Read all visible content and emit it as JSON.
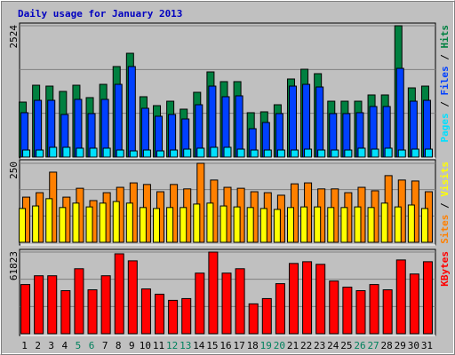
{
  "legend_separator": " / ",
  "chart_data": [
    {
      "type": "bar",
      "title": "Daily usage for January 2013",
      "ylim": [
        0,
        2524
      ],
      "yticks": [
        2524
      ],
      "series": [
        {
          "name": "Pages",
          "color": "#00e0ff",
          "values": [
            136,
            136,
            188,
            188,
            171,
            171,
            171,
            136,
            119,
            136,
            119,
            136,
            153,
            171,
            188,
            188,
            153,
            136,
            136,
            136,
            136,
            153,
            136,
            136,
            136,
            171,
            153,
            171,
            136,
            153,
            153
          ]
        },
        {
          "name": "Files",
          "color": "#0040ff",
          "values": [
            853,
            1091,
            1091,
            819,
            1109,
            836,
            1109,
            1398,
            1740,
            938,
            785,
            819,
            733,
            1006,
            1364,
            1160,
            1177,
            546,
            665,
            836,
            1364,
            1398,
            1347,
            836,
            836,
            853,
            972,
            972,
            1705,
            1074,
            1091
          ]
        },
        {
          "name": "Hits",
          "color": "#008040",
          "values": [
            1057,
            1381,
            1364,
            1262,
            1381,
            1143,
            1398,
            1740,
            1995,
            1160,
            989,
            1074,
            921,
            1245,
            1637,
            1450,
            1450,
            853,
            870,
            1006,
            1501,
            1688,
            1603,
            1074,
            1074,
            1074,
            1194,
            1194,
            2524,
            1330,
            1364
          ]
        }
      ]
    },
    {
      "type": "bar",
      "ylim": [
        0,
        250
      ],
      "yticks": [
        250
      ],
      "series": [
        {
          "name": "Sites",
          "color": "#ff8000",
          "values": [
            143,
            157,
            222,
            143,
            171,
            132,
            157,
            174,
            188,
            183,
            160,
            183,
            169,
            250,
            197,
            174,
            171,
            160,
            157,
            149,
            185,
            188,
            169,
            169,
            157,
            174,
            163,
            211,
            197,
            194,
            160
          ]
        },
        {
          "name": "Visits",
          "color": "#ffff00",
          "values": [
            107,
            115,
            138,
            110,
            124,
            112,
            124,
            129,
            124,
            110,
            107,
            110,
            110,
            121,
            124,
            115,
            112,
            110,
            107,
            104,
            110,
            112,
            112,
            110,
            110,
            112,
            110,
            124,
            112,
            118,
            107
          ]
        }
      ]
    },
    {
      "type": "bar",
      "ylim": [
        0,
        61823
      ],
      "yticks": [
        61823
      ],
      "categories": [
        "1",
        "2",
        "3",
        "4",
        "5",
        "6",
        "7",
        "8",
        "9",
        "10",
        "11",
        "12",
        "13",
        "14",
        "15",
        "16",
        "17",
        "18",
        "19",
        "20",
        "21",
        "22",
        "23",
        "24",
        "25",
        "26",
        "27",
        "28",
        "29",
        "30",
        "31"
      ],
      "category_colors": [
        "#000000",
        "#000000",
        "#000000",
        "#000000",
        "#00805c",
        "#00805c",
        "#000000",
        "#000000",
        "#000000",
        "#000000",
        "#000000",
        "#00805c",
        "#00805c",
        "#000000",
        "#000000",
        "#000000",
        "#000000",
        "#000000",
        "#00805c",
        "#00805c",
        "#000000",
        "#000000",
        "#000000",
        "#000000",
        "#000000",
        "#00805c",
        "#00805c",
        "#000000",
        "#000000",
        "#000000",
        "#000000"
      ],
      "series": [
        {
          "name": "KBytes",
          "color": "#ff0000",
          "values": [
            37228,
            43877,
            43877,
            32575,
            49195,
            33240,
            43877,
            60497,
            55178,
            33904,
            29915,
            25262,
            26592,
            45871,
            61823,
            45871,
            49195,
            22603,
            26592,
            37893,
            53183,
            54512,
            52518,
            39887,
            35234,
            32575,
            37228,
            33240,
            55842,
            45205,
            54512
          ]
        }
      ]
    }
  ]
}
